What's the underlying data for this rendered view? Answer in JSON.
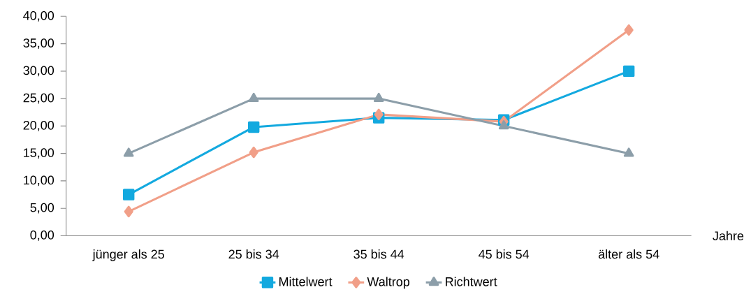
{
  "chart_data": {
    "type": "line",
    "xlabel": "Jahre",
    "categories": [
      "jünger als 25",
      "25 bis 34",
      "35 bis 44",
      "45 bis 54",
      "älter als 54"
    ],
    "series": [
      {
        "name": "Mittelwert",
        "color": "#13a9df",
        "marker": "square",
        "values": [
          7.5,
          19.8,
          21.5,
          21.1,
          30.0
        ]
      },
      {
        "name": "Waltrop",
        "color": "#f19f88",
        "marker": "diamond",
        "values": [
          4.4,
          15.2,
          22.1,
          20.8,
          37.5
        ]
      },
      {
        "name": "Richtwert",
        "color": "#8c9ea9",
        "marker": "triangle",
        "values": [
          15,
          25,
          25,
          20,
          15
        ]
      }
    ],
    "ylim": [
      0,
      40
    ],
    "yticks": [
      {
        "value": 0,
        "label": "0,00"
      },
      {
        "value": 5,
        "label": "5,00"
      },
      {
        "value": 10,
        "label": "10,00"
      },
      {
        "value": 15,
        "label": "15,00"
      },
      {
        "value": 20,
        "label": "20,00"
      },
      {
        "value": 25,
        "label": "25,00"
      },
      {
        "value": 30,
        "label": "30,00"
      },
      {
        "value": 35,
        "label": "35,00"
      },
      {
        "value": 40,
        "label": "40,00"
      }
    ],
    "grid": false,
    "legend": "bottom",
    "line_style": "solid"
  }
}
